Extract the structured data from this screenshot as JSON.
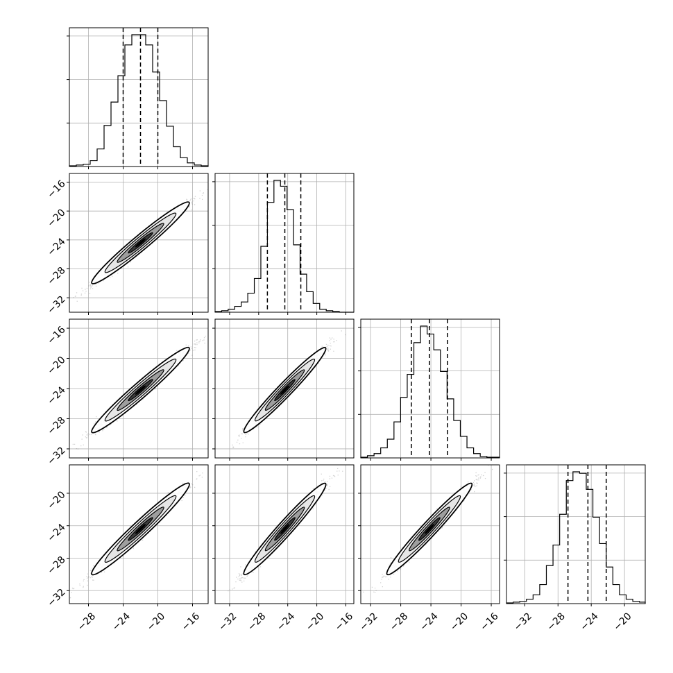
{
  "chart_data": {
    "type": "corner",
    "title": "",
    "grid": true,
    "colors": {
      "line": "#000000",
      "grid": "#b0b0b0",
      "scatter": "#808080"
    },
    "parameters": [
      {
        "index": 0,
        "xlim": [
          -30.2,
          -14.2
        ],
        "ylim": [
          -34.0,
          -14.8
        ],
        "hist_ticks": [
          -28,
          -24,
          -20,
          -16
        ],
        "quantiles": [
          -24.0,
          -22.0,
          -20.0
        ]
      },
      {
        "index": 1,
        "xlim": [
          -34.0,
          -14.9
        ],
        "ylim": [
          -34.0,
          -14.8
        ],
        "hist_ticks": [
          -32,
          -28,
          -24,
          -20,
          -16
        ],
        "quantiles": [
          -26.8,
          -24.4,
          -22.2
        ]
      },
      {
        "index": 2,
        "xlim": [
          -33.3,
          -14.9
        ],
        "ylim": [
          -33.2,
          -14.8
        ],
        "hist_ticks": [
          -32,
          -28,
          -24,
          -20,
          -16
        ],
        "quantiles": [
          -26.6,
          -24.2,
          -21.8
        ]
      },
      {
        "index": 3,
        "xlim": [
          -34.2,
          -17.5
        ],
        "ylim": [
          -33.6,
          -16.5
        ],
        "hist_ticks": [
          -32,
          -28,
          -24,
          -20
        ],
        "quantiles": [
          -26.8,
          -24.4,
          -22.2
        ]
      }
    ],
    "diagonal_hist": [
      {
        "param": 0,
        "x_start": -30.2,
        "bin_width": 0.8,
        "counts": [
          1,
          2,
          3,
          8,
          24,
          56,
          88,
          124,
          166,
          180,
          180,
          166,
          129,
          90,
          55,
          27,
          12,
          5,
          2,
          1
        ]
      },
      {
        "param": 1,
        "x_start": -34.0,
        "bin_width": 0.9,
        "counts": [
          1,
          2,
          4,
          8,
          14,
          26,
          46,
          90,
          150,
          180,
          172,
          140,
          92,
          52,
          28,
          12,
          4,
          2,
          1,
          0,
          0
        ]
      },
      {
        "param": 2,
        "x_start": -33.3,
        "bin_width": 0.88,
        "counts": [
          1,
          3,
          6,
          14,
          26,
          50,
          84,
          116,
          160,
          183,
          172,
          150,
          120,
          82,
          52,
          30,
          14,
          6,
          2,
          1,
          1
        ]
      },
      {
        "param": 3,
        "x_start": -34.2,
        "bin_width": 0.8,
        "counts": [
          1,
          2,
          3,
          6,
          12,
          26,
          52,
          80,
          122,
          168,
          180,
          178,
          156,
          118,
          82,
          50,
          26,
          12,
          6,
          3,
          2
        ]
      }
    ],
    "pair_ticks": {
      "y": {
        "1": [
          -16,
          -20,
          -24,
          -28,
          -32
        ],
        "2": [
          -16,
          -20,
          -24,
          -28,
          -32
        ],
        "3": [
          -20,
          -24,
          -28,
          -32
        ]
      },
      "x": {
        "0": [
          -28,
          -24,
          -20,
          -16
        ],
        "1": [
          -32,
          -28,
          -24,
          -20,
          -16
        ],
        "2": [
          -32,
          -28,
          -24,
          -20,
          -16
        ],
        "3": [
          -32,
          -28,
          -24,
          -20
        ]
      }
    }
  }
}
